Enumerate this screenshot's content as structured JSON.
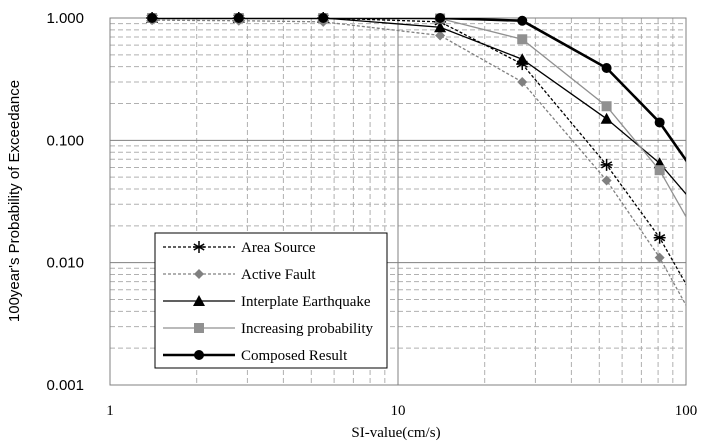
{
  "chart_data": {
    "type": "line",
    "title": "",
    "xlabel": "SI-value(cm/s)",
    "ylabel": "100year's Probability of Exceedance",
    "xscale": "log",
    "yscale": "log",
    "xlim": [
      1,
      100
    ],
    "ylim": [
      0.001,
      1
    ],
    "grid": true,
    "legend_position": "bottom-left",
    "x_tick_labels": [
      "1",
      "10",
      "100"
    ],
    "y_tick_labels": [
      "0.001",
      "0.010",
      "0.100",
      "1.000"
    ],
    "series": [
      {
        "name": "Area Source",
        "color": "#000000",
        "line": "dashed",
        "marker": "star",
        "x": [
          1.4,
          2.8,
          5.5,
          14,
          27,
          53,
          81,
          110
        ],
        "y": [
          1.0,
          1.0,
          1.0,
          0.93,
          0.42,
          0.063,
          0.016,
          0.0045
        ],
        "markers_at": [
          0,
          1,
          2,
          3,
          4,
          5,
          6
        ]
      },
      {
        "name": "Active Fault",
        "color": "#808080",
        "line": "dashed",
        "marker": "diamond",
        "x": [
          1.4,
          2.8,
          5.5,
          14,
          27,
          53,
          81,
          110
        ],
        "y": [
          0.96,
          0.95,
          0.93,
          0.72,
          0.3,
          0.047,
          0.011,
          0.003
        ],
        "markers_at": [
          0,
          1,
          2,
          3,
          4,
          5,
          6
        ]
      },
      {
        "name": "Interplate Earthquake",
        "color": "#000000",
        "line": "solid",
        "marker": "triangle",
        "x": [
          1.4,
          2.8,
          5.5,
          14,
          27,
          53,
          81,
          110
        ],
        "y": [
          1.0,
          1.0,
          1.0,
          0.84,
          0.46,
          0.15,
          0.065,
          0.028
        ],
        "markers_at": [
          0,
          1,
          2,
          3,
          4,
          5,
          6
        ]
      },
      {
        "name": "Increasing probability",
        "color": "#909090",
        "line": "solid",
        "marker": "square",
        "x": [
          1.4,
          2.8,
          5.5,
          14,
          27,
          53,
          81,
          110
        ],
        "y": [
          1.0,
          1.0,
          1.0,
          0.99,
          0.67,
          0.19,
          0.057,
          0.016
        ],
        "markers_at": [
          0,
          1,
          2,
          3,
          4,
          5,
          6
        ]
      },
      {
        "name": "Composed Result",
        "color": "#000000",
        "line": "thick",
        "marker": "circle",
        "x": [
          1.4,
          2.8,
          5.5,
          14,
          27,
          53,
          81,
          110
        ],
        "y": [
          1.0,
          1.0,
          1.0,
          1.0,
          0.95,
          0.39,
          0.14,
          0.05
        ],
        "markers_at": [
          0,
          1,
          2,
          3,
          4,
          5,
          6
        ]
      }
    ]
  }
}
